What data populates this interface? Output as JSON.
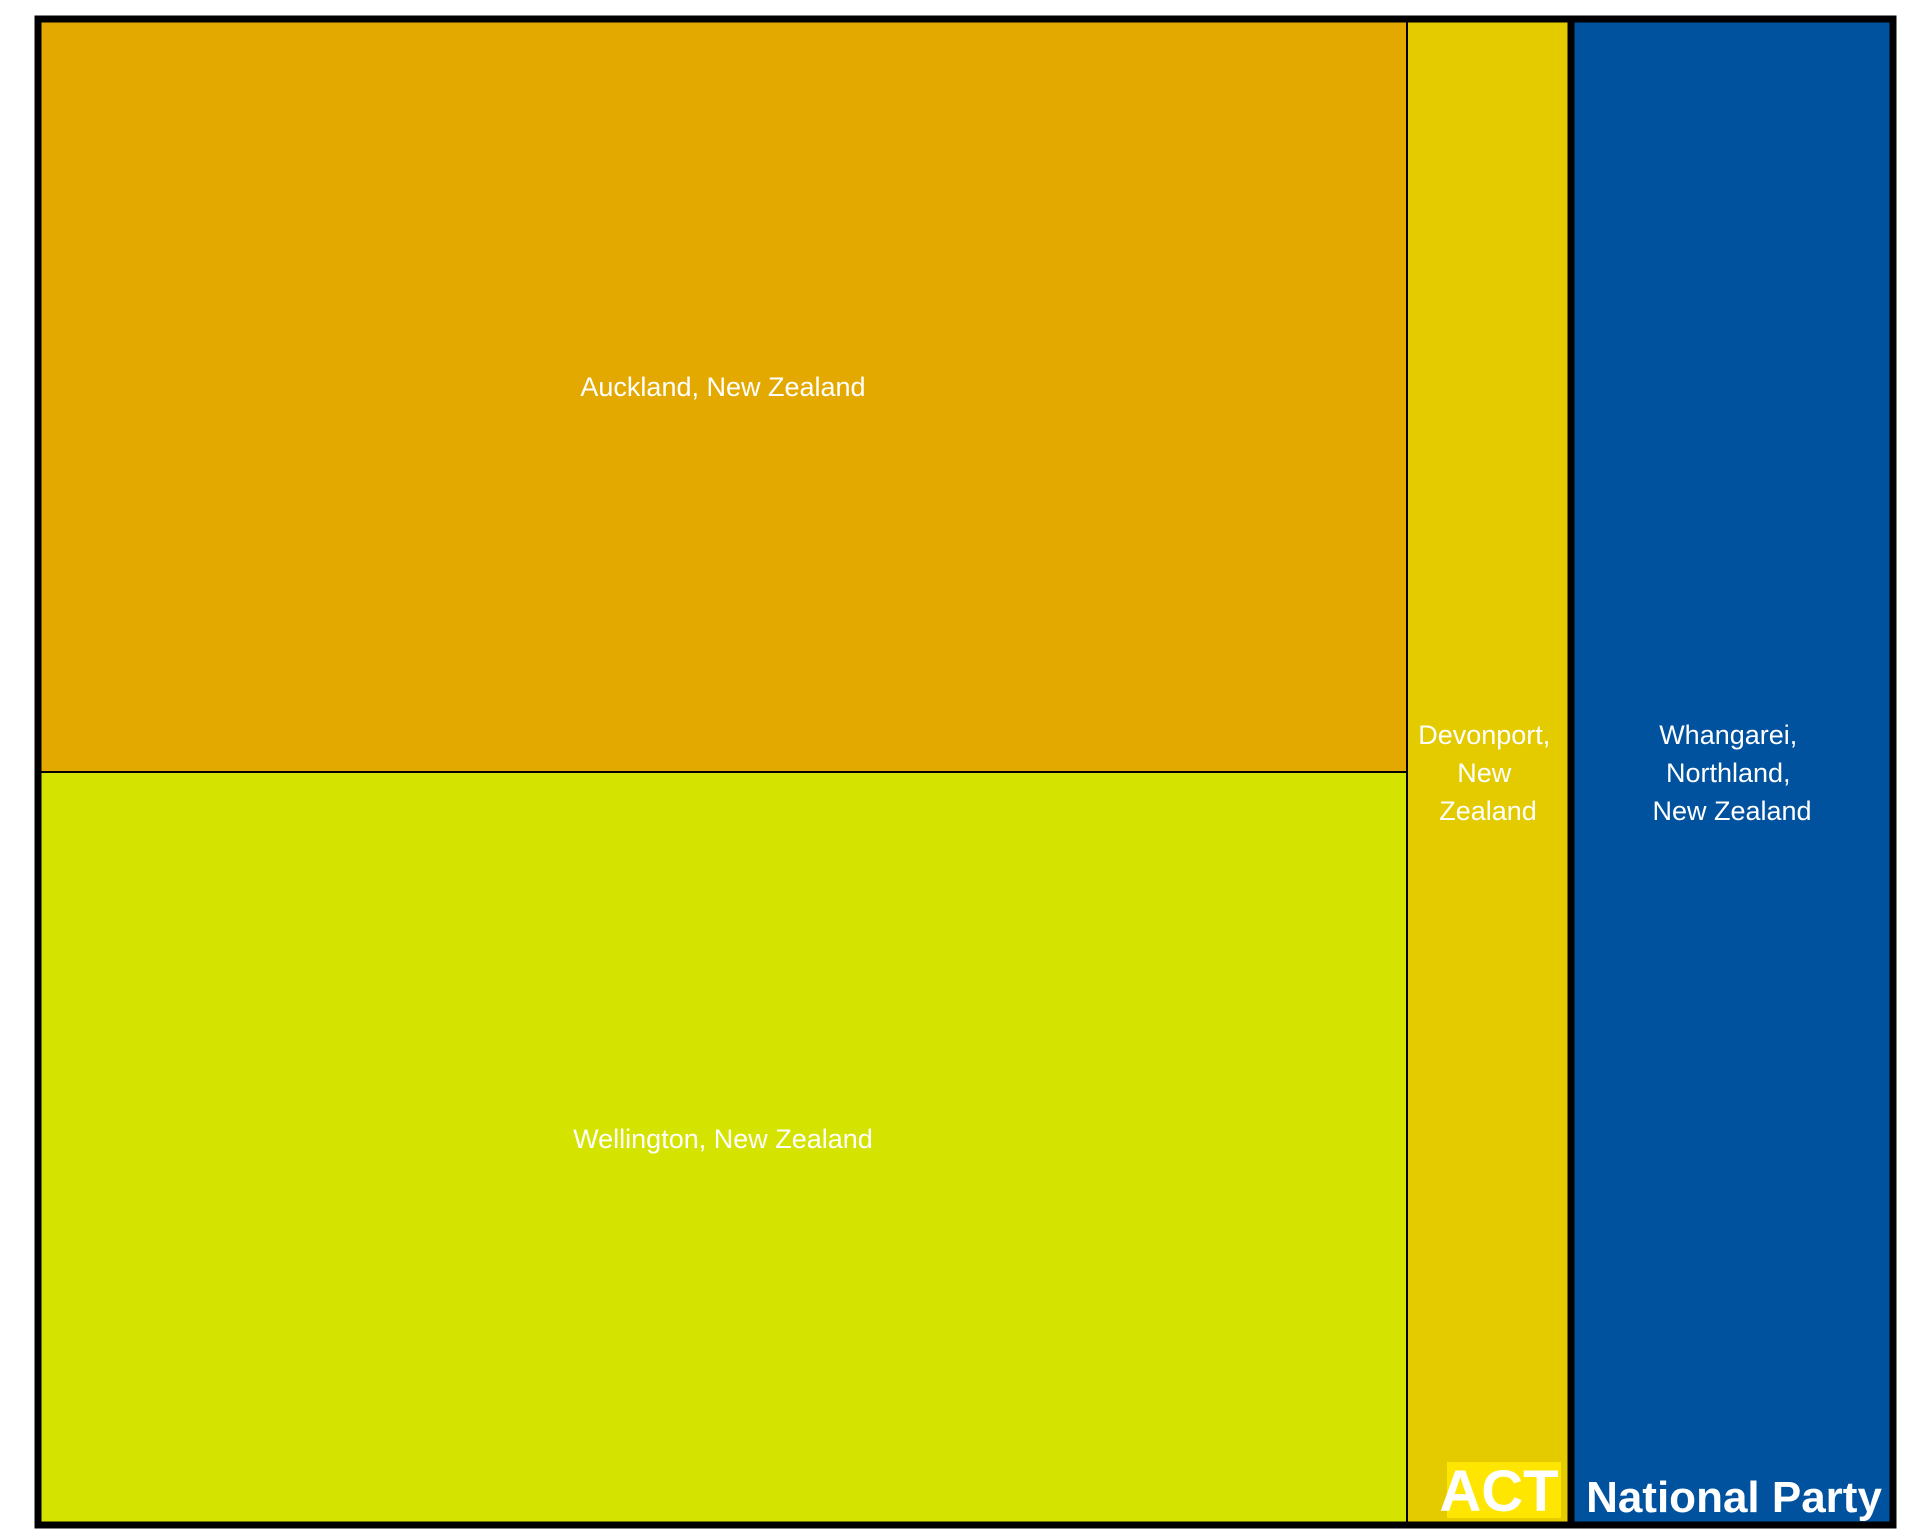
{
  "chart_data": {
    "type": "treemap",
    "groups": [
      {
        "name": "ACT",
        "label_bg": "#ffe600",
        "children": [
          {
            "label": "Auckland, New Zealand",
            "value": 55,
            "color": "#e3a900"
          },
          {
            "label": "Wellington, New Zealand",
            "value": 55,
            "color": "#d5e300"
          },
          {
            "label": "Devonport, New Zealand",
            "value": 13,
            "color": "#e3cb00"
          }
        ]
      },
      {
        "name": "National Party",
        "label_bg": "#00529f",
        "children": [
          {
            "label": "Whangarei, Northland, New Zealand",
            "value": 26,
            "color": "#00529f"
          }
        ]
      }
    ]
  }
}
